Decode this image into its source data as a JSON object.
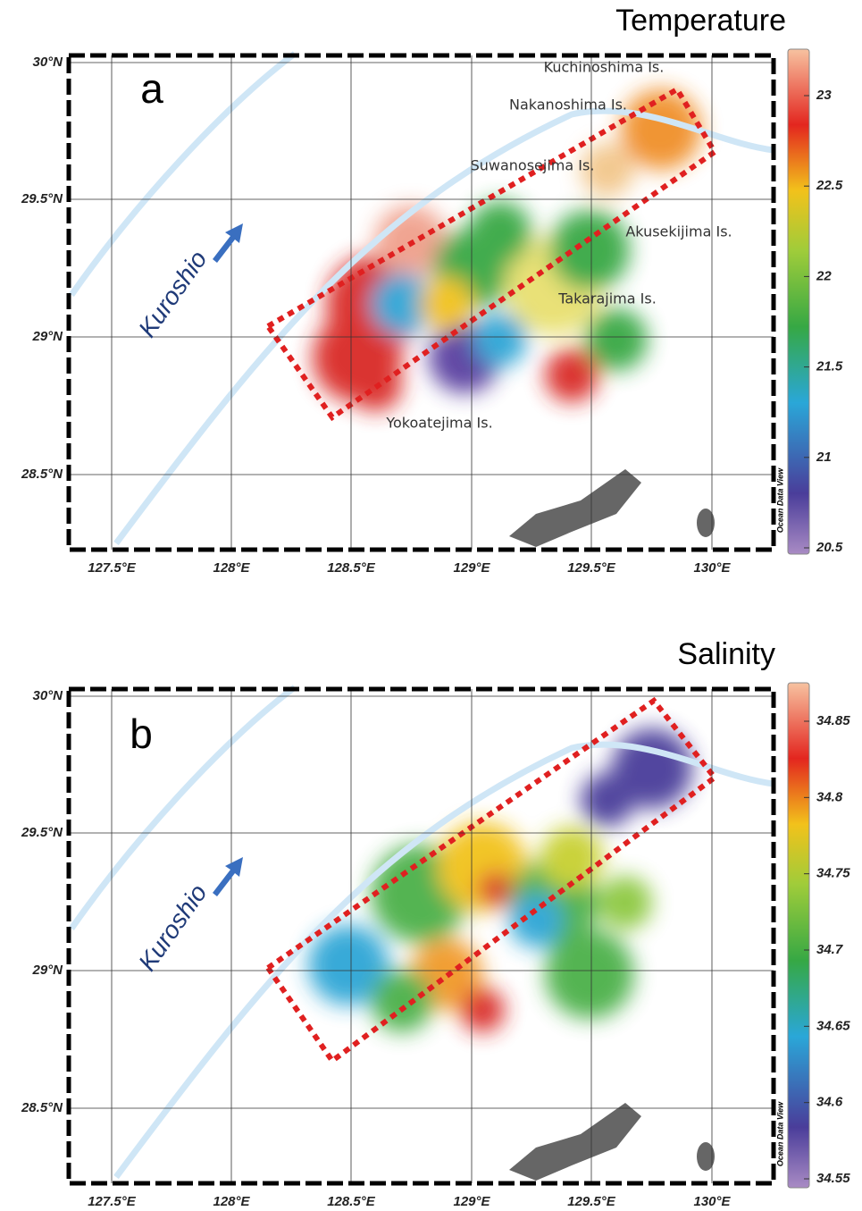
{
  "panels": [
    {
      "title": "Temperature",
      "label": "a",
      "current": "Kuroshio",
      "credit": "Ocean Data View",
      "lon_ticks": [
        "127.5°E",
        "128°E",
        "128.5°E",
        "129°E",
        "129.5°E",
        "130°E"
      ],
      "lat_ticks": [
        "30°N",
        "29.5°N",
        "29°N",
        "28.5°N"
      ],
      "colorbar_ticks": [
        23,
        22.5,
        22,
        21.5,
        21,
        20.5
      ],
      "islands": [
        "Kuchinoshima Is.",
        "Nakanoshima Is.",
        "Suwanosejima Is.",
        "Akusekijima Is.",
        "Takarajima Is.",
        "Yokoatejima Is."
      ]
    },
    {
      "title": "Salinity",
      "label": "b",
      "current": "Kuroshio",
      "credit": "Ocean Data View",
      "lon_ticks": [
        "127.5°E",
        "128°E",
        "128.5°E",
        "129°E",
        "129.5°E",
        "130°E"
      ],
      "lat_ticks": [
        "30°N",
        "29.5°N",
        "29°N",
        "28.5°N"
      ],
      "colorbar_ticks": [
        34.85,
        34.8,
        34.75,
        34.7,
        34.65,
        34.6,
        34.55
      ],
      "islands": []
    }
  ]
}
